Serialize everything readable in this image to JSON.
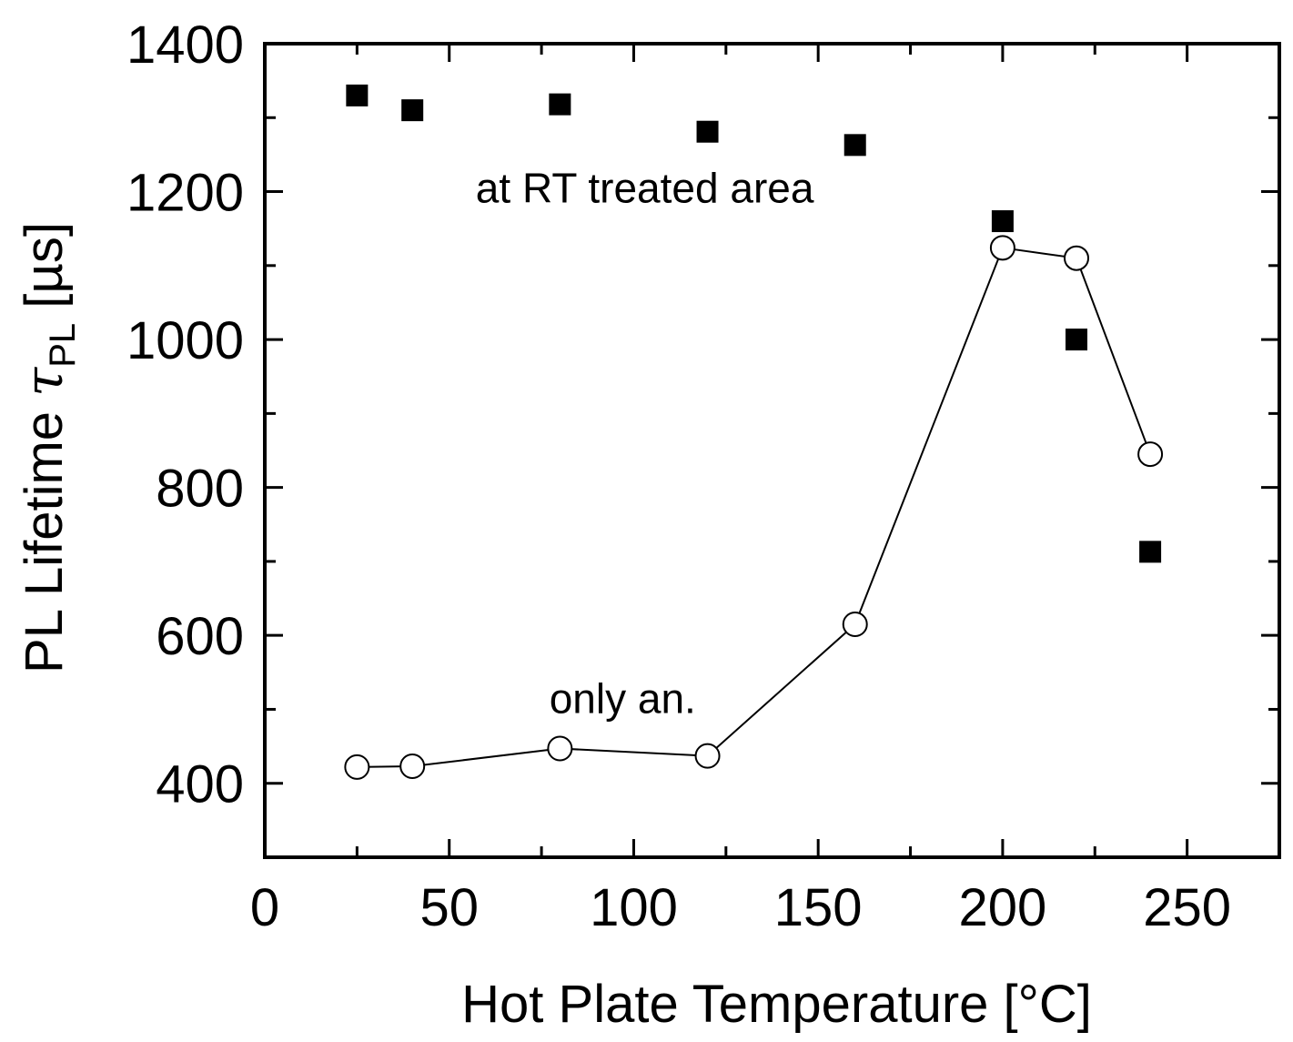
{
  "chart_data": {
    "type": "scatter",
    "xlabel": "Hot Plate Temperature [°C]",
    "ylabel": {
      "main": "PL Lifetime ",
      "symbol": "τ",
      "subscript": "PL",
      "unit": " [µs]"
    },
    "xlim": [
      0,
      275
    ],
    "ylim": [
      300,
      1400
    ],
    "x_ticks": [
      0,
      50,
      100,
      150,
      200,
      250
    ],
    "y_ticks": [
      400,
      600,
      800,
      1000,
      1200,
      1400
    ],
    "x_minor_ticks": [
      25,
      75,
      125,
      175,
      225
    ],
    "y_minor_ticks": [
      500,
      700,
      900,
      1100,
      1300
    ],
    "grid": false,
    "series": [
      {
        "marker": "filled-square",
        "connected": false,
        "color": "#000000",
        "x": [
          25,
          40,
          80,
          120,
          160,
          200,
          220,
          240
        ],
        "y": [
          1330,
          1310,
          1318,
          1281,
          1263,
          1160,
          1000,
          713
        ]
      },
      {
        "marker": "open-circle",
        "connected": true,
        "color": "#000000",
        "x": [
          25,
          40,
          80,
          120,
          160,
          200,
          220,
          240
        ],
        "y": [
          422,
          423,
          447,
          437,
          615,
          1124,
          1110,
          845
        ]
      }
    ],
    "annotations": [
      {
        "text": "at RT treated area",
        "x": 103,
        "y": 1185
      },
      {
        "text": "only an.",
        "x": 97,
        "y": 495
      }
    ]
  }
}
